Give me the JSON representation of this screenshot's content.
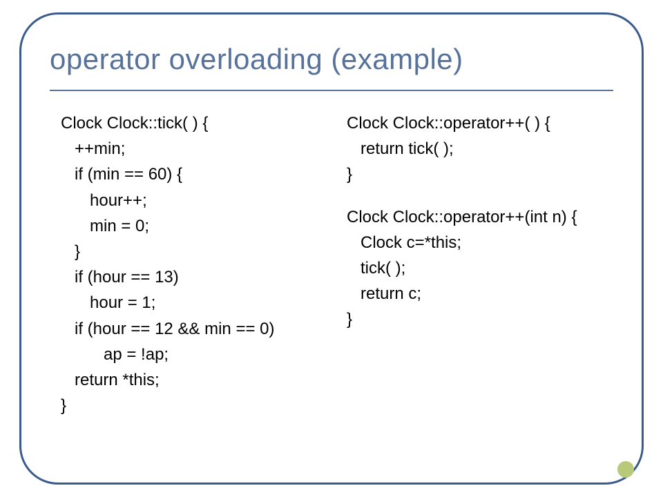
{
  "title": "operator overloading (example)",
  "colors": {
    "frame_border": "#3b5b8c",
    "title_color": "#56729b",
    "underline_color": "#56729b",
    "body_text": "#000000",
    "accent_dot": "#b9c97a",
    "background": "#ffffff"
  },
  "typography": {
    "title_font": "Verdana",
    "title_size_pt": 32,
    "body_font": "Arial",
    "body_size_pt": 18,
    "line_height": 1.55
  },
  "left_code": [
    {
      "indent": 0,
      "text": "Clock  Clock::tick( ) {"
    },
    {
      "indent": 1,
      "text": "++min;"
    },
    {
      "indent": 1,
      "text": "if (min == 60) {"
    },
    {
      "indent": 2,
      "text": "hour++;"
    },
    {
      "indent": 2,
      "text": "min = 0;"
    },
    {
      "indent": 1,
      "text": "}"
    },
    {
      "indent": 1,
      "text": "if (hour == 13)"
    },
    {
      "indent": 2,
      "text": "hour = 1;"
    },
    {
      "indent": 1,
      "text": "if (hour == 12 && min == 0)"
    },
    {
      "indent": 3,
      "text": "ap = !ap;"
    },
    {
      "indent": 1,
      "text": "return  *this;"
    },
    {
      "indent": 0,
      "text": "}"
    }
  ],
  "right_code": [
    {
      "indent": 0,
      "text": "Clock Clock::operator++( ) {"
    },
    {
      "indent": 1,
      "text": "return  tick( );"
    },
    {
      "indent": 0,
      "text": "}"
    },
    {
      "blank": true
    },
    {
      "indent": 0,
      "text": "Clock Clock::operator++(int n) {"
    },
    {
      "indent": 1,
      "text": "Clock  c=*this;"
    },
    {
      "indent": 1,
      "text": "tick( );"
    },
    {
      "indent": 1,
      "text": "return c;"
    },
    {
      "indent": 0,
      "text": "}"
    }
  ]
}
